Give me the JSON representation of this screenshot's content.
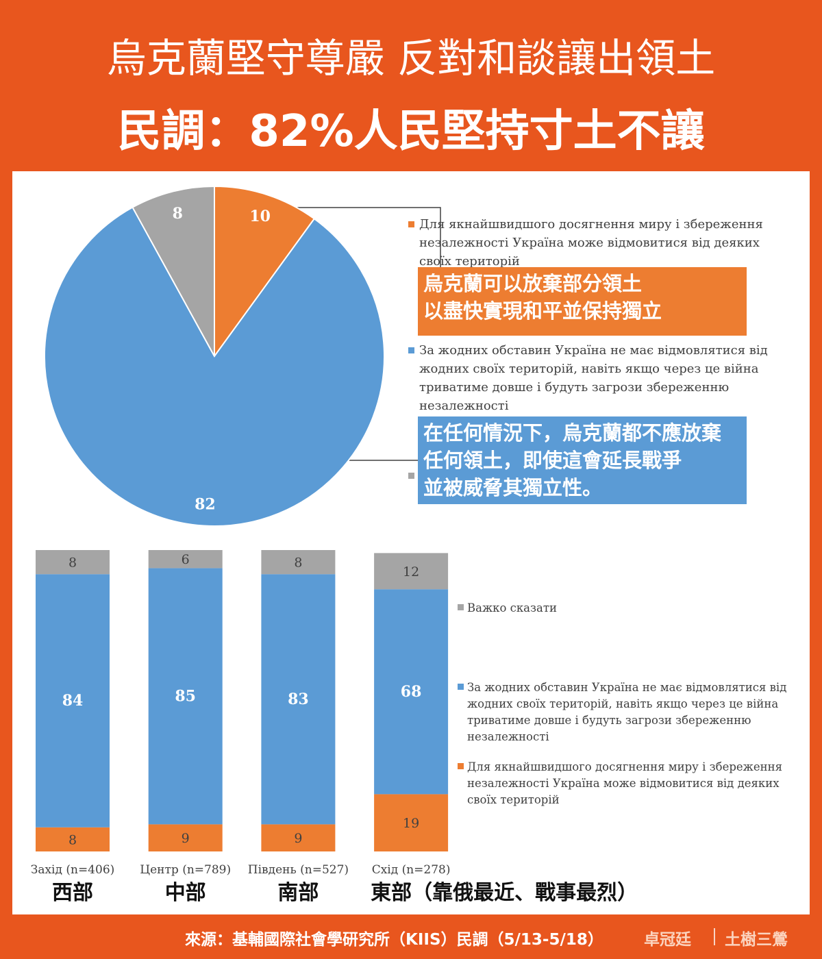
{
  "header": {
    "title": "烏克蘭堅守尊嚴 反對和談讓出領土",
    "subtitle": "民調：82%人民堅持寸土不讓"
  },
  "chart_data": [
    {
      "type": "pie",
      "categories": [
        "Для якнайшвидшого досягнення миру і збереження незалежності Україна може відмовитися від деяких своїх територій",
        "За жодних обставин Україна не має відмовлятися від жодних своїх територій, навіть якщо через це війна триватиме довше і будуть загрози збереженню незалежності",
        null
      ],
      "values": [
        10,
        82,
        8
      ],
      "colors": [
        "#ed7d31",
        "#5b9bd5",
        "#a5a5a5"
      ],
      "annotations": [
        {
          "color": "#ed7d31",
          "lines": [
            "烏克蘭可以放棄部分領土",
            "以盡快實現和平並保持獨立"
          ]
        },
        {
          "color": "#5b9bd5",
          "lines": [
            "在任何情況下，烏克蘭都不應放棄",
            "任何領土，即使這會延長戰爭",
            "並被威脅其獨立性。"
          ]
        }
      ]
    },
    {
      "type": "stacked-bar",
      "categories": [
        "Захід (n=406)",
        "Центр (n=789)",
        "Південь (n=527)",
        "Схід (n=278)"
      ],
      "region_labels": [
        "西部",
        "中部",
        "南部",
        "東部（靠俄最近、戰事最烈）"
      ],
      "ylim": [
        0,
        100
      ],
      "series": [
        {
          "name": "Для якнайшвидшого досягнення миру і збереження незалежності Україна може відмовитися від деяких своїх територій",
          "color": "#ed7d31",
          "values": [
            8,
            9,
            9,
            19
          ]
        },
        {
          "name": "За жодних обставин Україна не має відмовлятися від жодних своїх територій, навіть якщо через це війна триватиме довше і будуть загрози збереженню незалежності",
          "color": "#5b9bd5",
          "values": [
            84,
            85,
            83,
            68
          ]
        },
        {
          "name": "Важко сказати",
          "color": "#a5a5a5",
          "values": [
            8,
            6,
            8,
            12
          ]
        }
      ]
    }
  ],
  "footer": {
    "source": "來源：基輔國際社會學研究所（KIIS）民調（5/13-5/18）",
    "authors": [
      "卓冠廷",
      "土樹三鶯"
    ]
  }
}
